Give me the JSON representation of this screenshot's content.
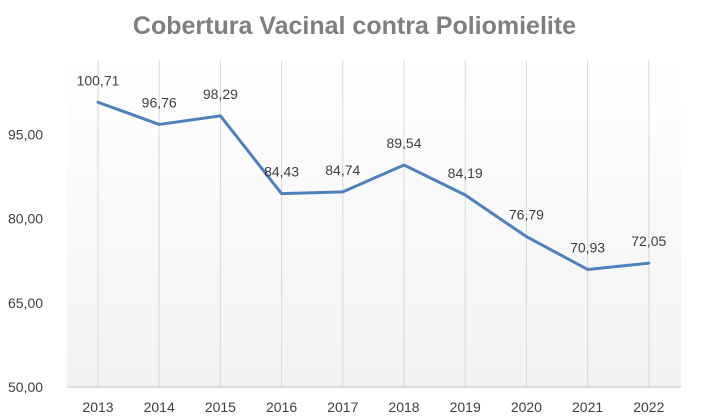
{
  "chart_data": {
    "type": "line",
    "title": "Cobertura Vacinal contra Poliomielite",
    "xlabel": "",
    "ylabel": "",
    "categories": [
      "2013",
      "2014",
      "2015",
      "2016",
      "2017",
      "2018",
      "2019",
      "2020",
      "2021",
      "2022"
    ],
    "values": [
      100.71,
      96.76,
      98.29,
      84.43,
      84.74,
      89.54,
      84.19,
      76.79,
      70.93,
      72.05
    ],
    "data_labels": [
      "100,71",
      "96,76",
      "98,29",
      "84,43",
      "84,74",
      "89,54",
      "84,19",
      "76,79",
      "70,93",
      "72,05"
    ],
    "ylim": [
      50,
      109
    ],
    "yticks": [
      50,
      65,
      80,
      95
    ],
    "ytick_labels": [
      "50,00",
      "65,00",
      "80,00",
      "95,00"
    ],
    "grid": "vertical",
    "legend": "none",
    "line_color": "#4f81bd",
    "grid_color": "#d9d9d9"
  }
}
